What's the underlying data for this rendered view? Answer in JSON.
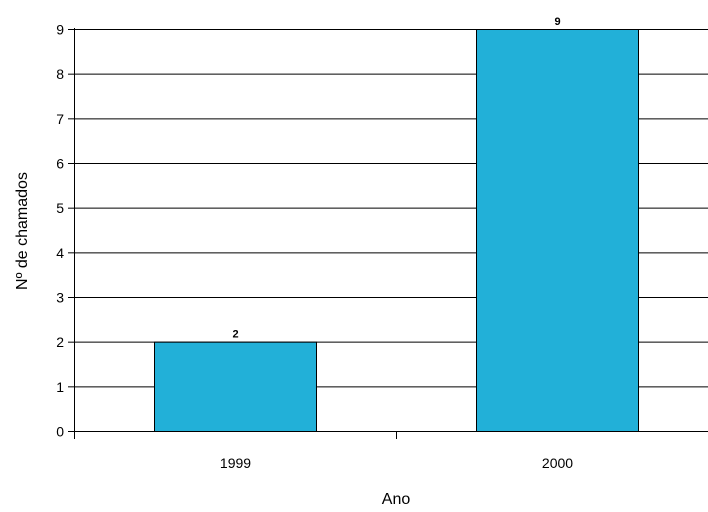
{
  "chart_data": {
    "type": "bar",
    "categories": [
      "1999",
      "2000"
    ],
    "values": [
      2,
      9
    ],
    "data_labels": [
      "2",
      "9"
    ],
    "title": "",
    "xlabel": "Ano",
    "ylabel": "Nº de chamados",
    "ylim": [
      0,
      9
    ],
    "yticks": [
      0,
      1,
      2,
      3,
      4,
      5,
      6,
      7,
      8,
      9
    ],
    "grid": true,
    "legend": "none",
    "colors": {
      "bar": "#22B0D8",
      "bar_stroke": "#000000",
      "grid": "#000000",
      "axis": "#000000"
    }
  }
}
